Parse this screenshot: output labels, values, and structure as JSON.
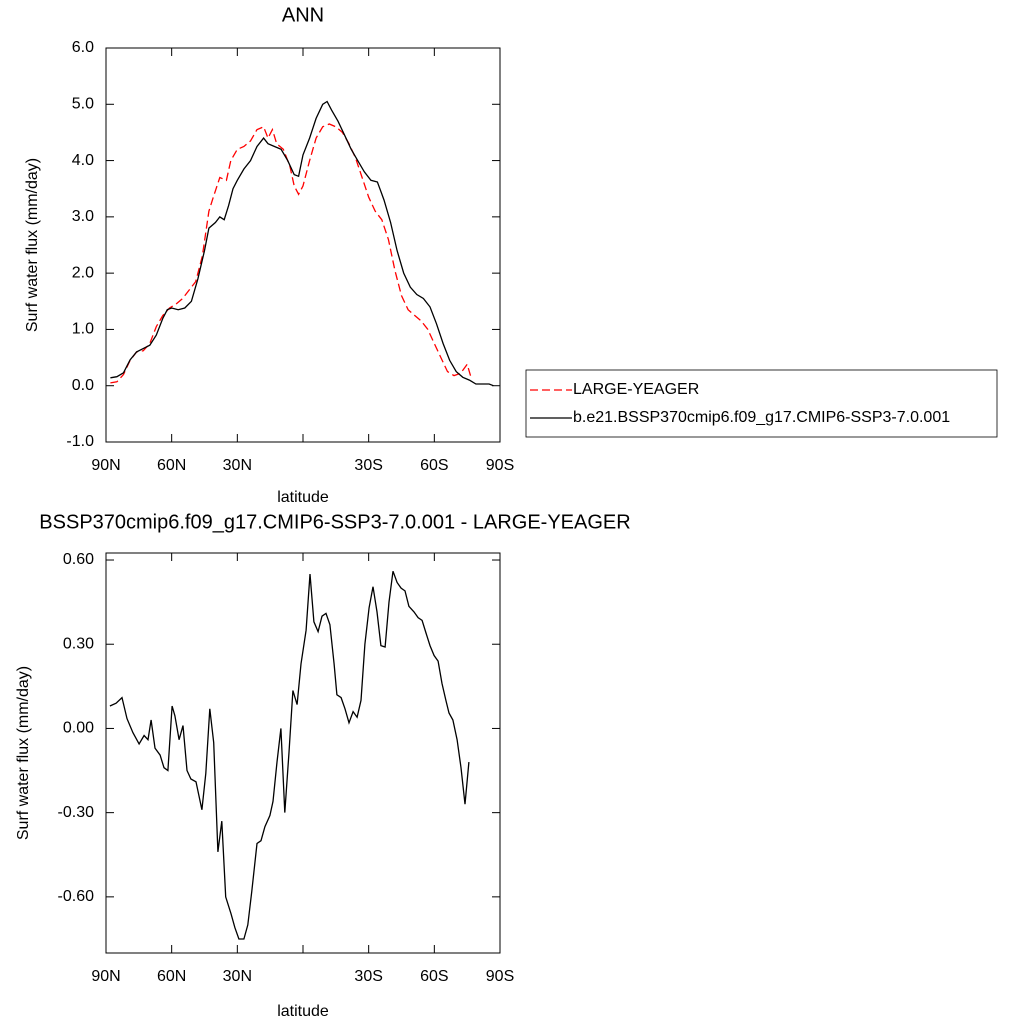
{
  "chart_data": [
    {
      "type": "line",
      "title": "ANN",
      "xlabel": "latitude",
      "ylabel": "Surf water flux (mm/day)",
      "xlim": [
        90,
        -90
      ],
      "xticks": [
        {
          "value": 90,
          "label": "90N"
        },
        {
          "value": 60,
          "label": "60N"
        },
        {
          "value": 30,
          "label": "30N"
        },
        {
          "value": 0,
          "label": null
        },
        {
          "value": -30,
          "label": "30S"
        },
        {
          "value": -60,
          "label": "60S"
        },
        {
          "value": -90,
          "label": "90S"
        }
      ],
      "ylim": [
        -1,
        6
      ],
      "yticks": [
        {
          "value": 6,
          "label": "6.0"
        },
        {
          "value": 5,
          "label": "5.0"
        },
        {
          "value": 4,
          "label": "4.0"
        },
        {
          "value": 3,
          "label": "3.0"
        },
        {
          "value": 2,
          "label": "2.0"
        },
        {
          "value": 1,
          "label": "1.0"
        },
        {
          "value": 0,
          "label": "0.0"
        },
        {
          "value": -1,
          "label": "-1.0"
        }
      ],
      "legend": "right",
      "series": [
        {
          "name": "LARGE-YEAGER",
          "color": "#ff0000",
          "linestyle": "dashed",
          "x": [
            88,
            85,
            82,
            79,
            76,
            73,
            70,
            67,
            64,
            61,
            58,
            55,
            52,
            49,
            46,
            43,
            41,
            38,
            35,
            33,
            30,
            27,
            24,
            21,
            18,
            16,
            14,
            12,
            9,
            6,
            4,
            2,
            0,
            -3,
            -6,
            -9,
            -12,
            -15,
            -18,
            -21,
            -24,
            -27,
            -30,
            -33,
            -36,
            -39,
            -42,
            -45,
            -48,
            -51,
            -54,
            -57,
            -60,
            -63,
            -66,
            -69,
            -72,
            -75,
            -77
          ],
          "values": [
            0.05,
            0.07,
            0.2,
            0.45,
            0.6,
            0.62,
            0.75,
            1.05,
            1.25,
            1.38,
            1.45,
            1.55,
            1.7,
            1.85,
            2.3,
            3.1,
            3.35,
            3.7,
            3.65,
            4.0,
            4.2,
            4.25,
            4.35,
            4.55,
            4.6,
            4.4,
            4.55,
            4.3,
            4.2,
            3.9,
            3.55,
            3.4,
            3.55,
            4.0,
            4.4,
            4.6,
            4.65,
            4.6,
            4.5,
            4.3,
            4.05,
            3.7,
            3.35,
            3.1,
            2.95,
            2.6,
            2.05,
            1.6,
            1.35,
            1.25,
            1.15,
            1.0,
            0.75,
            0.5,
            0.25,
            0.18,
            0.22,
            0.38,
            0.12
          ]
        },
        {
          "name": "b.e21.BSSP370cmip6.f09_g17.CMIP6-SSP3-7.0.001",
          "color": "#000000",
          "linestyle": "solid",
          "x": [
            88,
            85,
            82,
            79,
            76,
            73,
            70,
            67,
            64,
            62,
            60,
            57,
            54,
            51,
            48,
            45,
            43,
            40,
            38,
            36,
            34,
            32,
            30,
            27,
            24,
            21,
            18,
            16,
            13,
            10,
            7,
            4,
            2,
            0,
            -3,
            -6,
            -9,
            -11,
            -13,
            -16,
            -19,
            -22,
            -25,
            -28,
            -31,
            -34,
            -37,
            -40,
            -43,
            -46,
            -49,
            -52,
            -55,
            -58,
            -61,
            -64,
            -67,
            -70,
            -73,
            -76,
            -79,
            -82,
            -85,
            -87
          ],
          "values": [
            0.14,
            0.16,
            0.23,
            0.46,
            0.6,
            0.66,
            0.72,
            0.9,
            1.2,
            1.35,
            1.38,
            1.35,
            1.38,
            1.5,
            1.9,
            2.4,
            2.8,
            2.9,
            3.0,
            2.95,
            3.2,
            3.5,
            3.65,
            3.85,
            4.0,
            4.25,
            4.4,
            4.3,
            4.25,
            4.2,
            4.0,
            3.75,
            3.72,
            4.1,
            4.4,
            4.75,
            5.0,
            5.05,
            4.9,
            4.7,
            4.45,
            4.2,
            4.0,
            3.8,
            3.65,
            3.62,
            3.3,
            2.9,
            2.4,
            2.0,
            1.75,
            1.62,
            1.55,
            1.4,
            1.1,
            0.75,
            0.45,
            0.25,
            0.15,
            0.1,
            0.03,
            0.03,
            0.03,
            0.0
          ]
        }
      ]
    },
    {
      "type": "line",
      "title": "BSSP370cmip6.f09_g17.CMIP6-SSP3-7.0.001 - LARGE-YEAGER",
      "xlabel": "latitude",
      "ylabel": "Surf water flux (mm/day)",
      "xlim": [
        90,
        -90
      ],
      "xticks": [
        {
          "value": 90,
          "label": "90N"
        },
        {
          "value": 60,
          "label": "60N"
        },
        {
          "value": 30,
          "label": "30N"
        },
        {
          "value": 0,
          "label": null
        },
        {
          "value": -30,
          "label": "30S"
        },
        {
          "value": -60,
          "label": "60S"
        },
        {
          "value": -90,
          "label": "90S"
        }
      ],
      "ylim": [
        -0.8,
        0.625
      ],
      "yticks": [
        {
          "value": 0.6,
          "label": "0.60"
        },
        {
          "value": 0.3,
          "label": "0.30"
        },
        {
          "value": 0,
          "label": "0.00"
        },
        {
          "value": -0.3,
          "label": "-0.30"
        },
        {
          "value": -0.6,
          "label": "-0.60"
        }
      ],
      "color": "#000000",
      "x": [
        88.2,
        85.4,
        82.7,
        80.4,
        77.7,
        74.9,
        72.6,
        70.8,
        69.4,
        67.6,
        65.3,
        63.5,
        61.7,
        59.8,
        58.5,
        56.6,
        54.8,
        53.0,
        51.2,
        48.9,
        46.2,
        44.4,
        42.6,
        40.8,
        38.9,
        37.1,
        35.3,
        32.9,
        31.1,
        29.3,
        27.0,
        25.2,
        23.4,
        21.0,
        19.2,
        17.4,
        15.1,
        13.7,
        11.9,
        10.1,
        8.3,
        6.4,
        4.6,
        2.7,
        0.9,
        -1.4,
        -3.2,
        -5.0,
        -6.9,
        -8.7,
        -10.5,
        -12.3,
        -14.2,
        -15.5,
        -17.4,
        -19.2,
        -21.0,
        -22.9,
        -24.7,
        -26.5,
        -28.3,
        -30.2,
        -32.0,
        -33.8,
        -35.6,
        -37.5,
        -39.3,
        -41.1,
        -43.0,
        -44.8,
        -46.6,
        -48.4,
        -50.7,
        -52.6,
        -54.4,
        -56.2,
        -58.0,
        -59.9,
        -61.7,
        -63.5,
        -65.3,
        -66.7,
        -68.5,
        -70.4,
        -72.2,
        -74.0,
        -75.8
      ],
      "values": [
        0.08,
        0.09,
        0.11,
        0.035,
        -0.015,
        -0.055,
        -0.025,
        -0.04,
        0.03,
        -0.07,
        -0.095,
        -0.14,
        -0.15,
        0.08,
        0.045,
        -0.04,
        0.01,
        -0.15,
        -0.18,
        -0.19,
        -0.29,
        -0.16,
        0.07,
        -0.05,
        -0.44,
        -0.33,
        -0.6,
        -0.66,
        -0.71,
        -0.75,
        -0.75,
        -0.7,
        -0.58,
        -0.41,
        -0.4,
        -0.35,
        -0.31,
        -0.26,
        -0.12,
        0.0,
        -0.3,
        -0.085,
        0.135,
        0.085,
        0.23,
        0.35,
        0.55,
        0.38,
        0.345,
        0.4,
        0.41,
        0.37,
        0.23,
        0.12,
        0.11,
        0.07,
        0.02,
        0.06,
        0.04,
        0.1,
        0.3,
        0.43,
        0.505,
        0.415,
        0.295,
        0.29,
        0.45,
        0.56,
        0.52,
        0.5,
        0.49,
        0.435,
        0.415,
        0.395,
        0.385,
        0.34,
        0.295,
        0.26,
        0.24,
        0.16,
        0.1,
        0.055,
        0.03,
        -0.04,
        -0.14,
        -0.27,
        -0.12
      ]
    }
  ]
}
